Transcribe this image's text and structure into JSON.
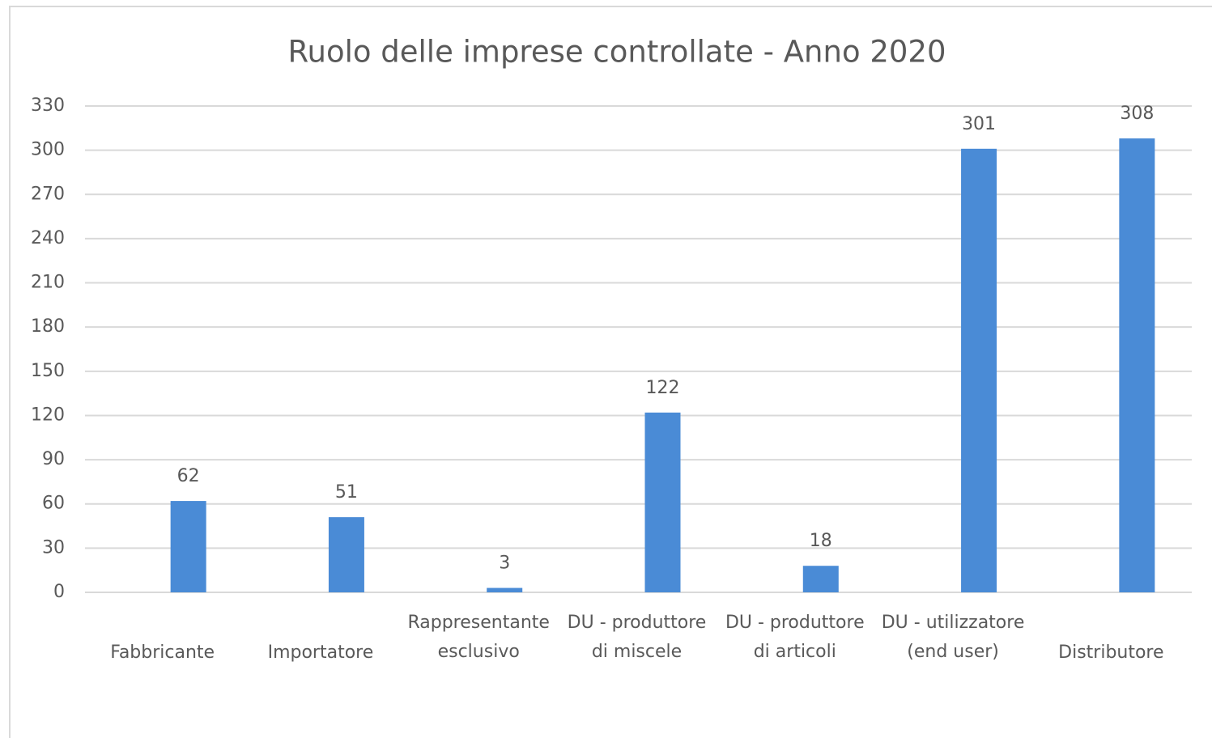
{
  "chart_data": {
    "type": "bar",
    "title": "Ruolo delle imprese controllate - Anno 2020",
    "categories": [
      "Fabbricante",
      "Importatore",
      "Rappresentante esclusivo",
      "DU - produttore di miscele",
      "DU - produttore di articoli",
      "DU - utilizzatore (end user)",
      "Distributore"
    ],
    "values": [
      62,
      51,
      3,
      122,
      18,
      301,
      308
    ],
    "color": "#4a8bd6",
    "ylim": [
      0,
      330
    ],
    "yticks": [
      0,
      30,
      60,
      90,
      120,
      150,
      180,
      210,
      240,
      270,
      300,
      330
    ],
    "grid": true
  }
}
